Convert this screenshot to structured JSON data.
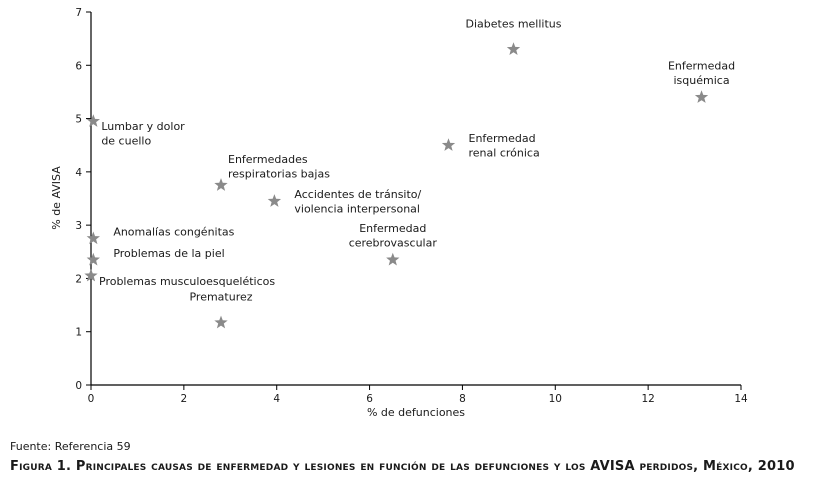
{
  "chart_data": {
    "type": "scatter",
    "xlabel": "% de defunciones",
    "ylabel": "% de AVISA",
    "xlim": [
      0,
      14
    ],
    "ylim": [
      0,
      7
    ],
    "xticks": [
      0,
      2,
      4,
      6,
      8,
      10,
      12,
      14
    ],
    "yticks": [
      0,
      1,
      2,
      3,
      4,
      5,
      6,
      7
    ],
    "grid": false,
    "marker": "star",
    "marker_color": "#8a8a8a",
    "points": [
      {
        "label": [
          "Diabetes mellitus"
        ],
        "x": 9.1,
        "y": 6.3,
        "label_pos": "above"
      },
      {
        "label": [
          "Enfermedad",
          "isquémica"
        ],
        "x": 13.15,
        "y": 5.4,
        "label_pos": "above"
      },
      {
        "label": [
          "Lumbar y dolor",
          "de cuello"
        ],
        "x": 0.05,
        "y": 4.95,
        "label_pos": "below-right"
      },
      {
        "label": [
          "Enfermedad",
          "renal crónica"
        ],
        "x": 7.7,
        "y": 4.5,
        "label_pos": "right"
      },
      {
        "label": [
          "Enfermedades",
          "respiratorias bajas"
        ],
        "x": 2.8,
        "y": 3.75,
        "label_pos": "above-right"
      },
      {
        "label": [
          "Accidentes de tránsito/",
          "violencia interpersonal"
        ],
        "x": 3.95,
        "y": 3.45,
        "label_pos": "right"
      },
      {
        "label": [
          "Anomalías congénitas"
        ],
        "x": 0.05,
        "y": 2.75,
        "label_pos": "right"
      },
      {
        "label": [
          "Enfermedad",
          "cerebrovascular"
        ],
        "x": 6.5,
        "y": 2.35,
        "label_pos": "above"
      },
      {
        "label": [
          "Problemas de la piel"
        ],
        "x": 0.05,
        "y": 2.35,
        "label_pos": "right"
      },
      {
        "label": [
          "Problemas musculoesqueléticos"
        ],
        "x": 0.0,
        "y": 2.05,
        "label_pos": "below-right"
      },
      {
        "label": [
          "Prematurez"
        ],
        "x": 2.8,
        "y": 1.17,
        "label_pos": "above"
      }
    ]
  },
  "source_note": "Fuente: Referencia 59",
  "caption": "Figura 1. Principales causas de enfermedad y lesiones en función de las defunciones y los AVISA perdidos, México, 2010"
}
